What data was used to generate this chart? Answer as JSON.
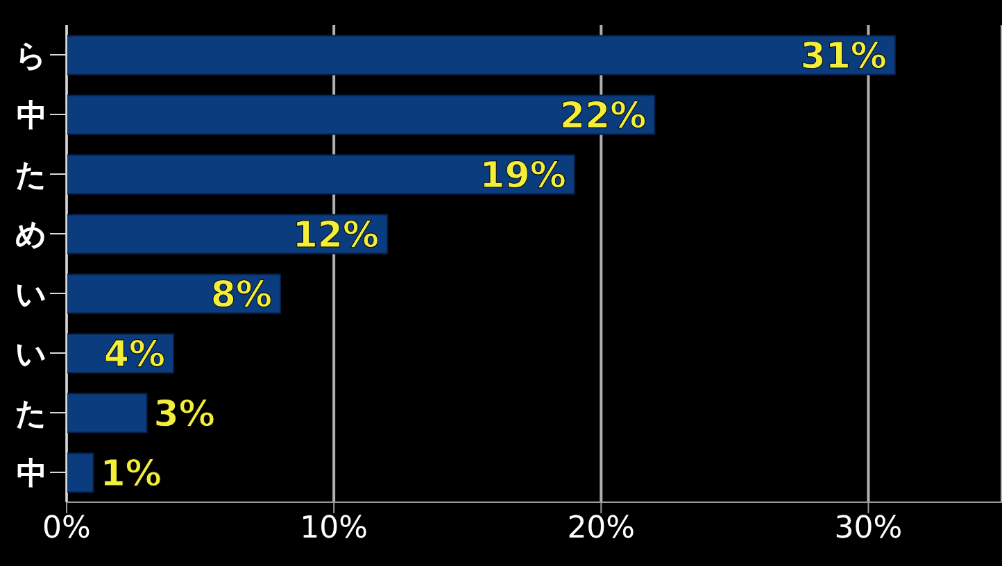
{
  "chart_data": {
    "type": "bar",
    "orientation": "horizontal",
    "categories": [
      "ら",
      "中",
      "た",
      "め",
      "い",
      "い",
      "た",
      "中"
    ],
    "values": [
      31,
      22,
      19,
      12,
      8,
      4,
      3,
      1
    ],
    "value_labels": [
      "31%",
      "22%",
      "19%",
      "12%",
      "8%",
      "4%",
      "3%",
      "1%"
    ],
    "color": "#0b3d7e",
    "xlim": [
      0,
      35
    ],
    "xticks": [
      {
        "value": 0,
        "label": "0%"
      },
      {
        "value": 10,
        "label": "10%"
      },
      {
        "value": 20,
        "label": "20%"
      },
      {
        "value": 30,
        "label": "30%"
      }
    ],
    "grid": "x"
  }
}
